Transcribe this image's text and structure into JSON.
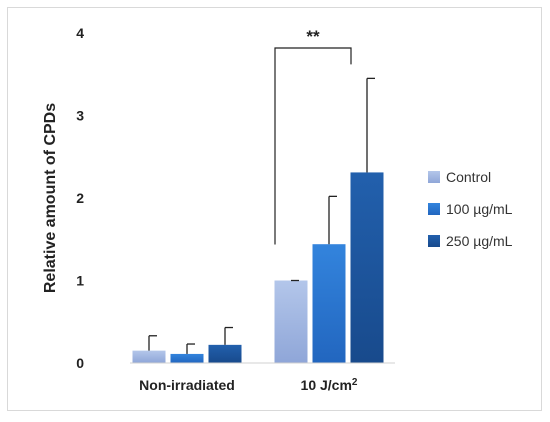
{
  "chart_data": {
    "type": "bar",
    "ylabel": "Relative amount of CPDs",
    "ylim": [
      0,
      4
    ],
    "yticks": [
      "0",
      "1",
      "2",
      "3",
      "4"
    ],
    "grid": false,
    "legend_position": "right",
    "categories": [
      {
        "label": "Non-irradiated",
        "sup": ""
      },
      {
        "label": "10 J/cm",
        "sup": "2"
      }
    ],
    "series": [
      {
        "name": "Control",
        "color": "#a9bde3",
        "values": [
          0.15,
          1.0
        ],
        "errors": [
          0.18,
          0.0
        ]
      },
      {
        "name": "100 µg/mL",
        "color": "#2e79d1",
        "values": [
          0.11,
          1.44
        ],
        "errors": [
          0.12,
          0.58
        ]
      },
      {
        "name": "250 µg/mL",
        "color": "#1f56a0",
        "values": [
          0.22,
          2.31
        ],
        "errors": [
          0.21,
          1.14
        ]
      }
    ],
    "annotation": {
      "text": "**",
      "category": 1,
      "from_series": 0,
      "to_series": 2
    }
  }
}
